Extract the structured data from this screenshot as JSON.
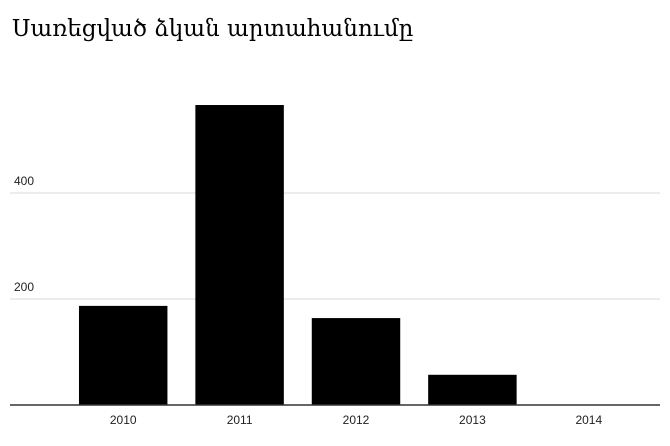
{
  "chart_data": {
    "type": "bar",
    "title": "Սառեցված ձկան արտահանումը",
    "categories": [
      "2010",
      "2011",
      "2012",
      "2013",
      "2014"
    ],
    "values": [
      187,
      566,
      164,
      57,
      0
    ],
    "color": "#000000",
    "ylim": [
      0,
      600
    ],
    "yticks": [
      200,
      400
    ],
    "grid": true
  }
}
